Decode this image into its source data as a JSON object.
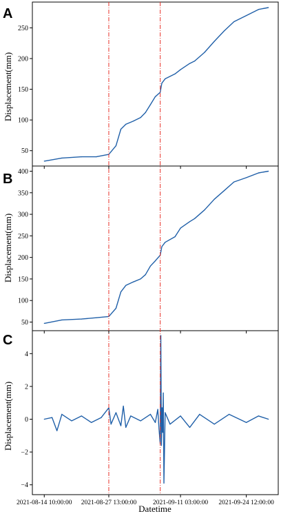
{
  "figure": {
    "xlabel": "Datetime",
    "x_tick_labels": [
      "2021-08-14 10:00:00",
      "2021-08-27 13:00:00",
      "2021-09-11 03:00:00",
      "2021-09-24 12:00:00"
    ],
    "vlines": [
      "2021-08-27 13:00:00",
      "2021-09-07 00:00:00"
    ],
    "vline_color": "#e8322a",
    "line_color": "#1f5fa8"
  },
  "chart_data": [
    {
      "type": "line",
      "panel": "A",
      "ylabel": "Displacement(mm)",
      "yticks": [
        50,
        100,
        150,
        200,
        250
      ],
      "ylim": [
        25,
        292
      ],
      "series": [
        {
          "x": [
            "2021-08-14 10:00",
            "2021-08-18 00:00",
            "2021-08-22 00:00",
            "2021-08-25 00:00",
            "2021-08-27 13:00",
            "2021-08-29 00:00",
            "2021-08-30 00:00",
            "2021-08-31 00:00",
            "2021-09-01 12:00",
            "2021-09-03 00:00",
            "2021-09-04 00:00",
            "2021-09-05 00:00",
            "2021-09-06 00:00",
            "2021-09-07 00:00",
            "2021-09-07 08:00",
            "2021-09-08 00:00",
            "2021-09-10 00:00",
            "2021-09-11 03:00",
            "2021-09-13 00:00",
            "2021-09-14 00:00",
            "2021-09-16 00:00",
            "2021-09-18 00:00",
            "2021-09-20 00:00",
            "2021-09-22 00:00",
            "2021-09-24 12:00",
            "2021-09-27 00:00",
            "2021-09-29 00:00"
          ],
          "y": [
            33,
            38,
            40,
            40,
            44,
            58,
            85,
            93,
            98,
            104,
            112,
            125,
            138,
            145,
            160,
            167,
            175,
            182,
            192,
            196,
            210,
            228,
            245,
            260,
            270,
            280,
            283
          ]
        }
      ]
    },
    {
      "type": "line",
      "panel": "B",
      "ylabel": "Displacement(mm)",
      "yticks": [
        50,
        100,
        150,
        200,
        250,
        300,
        350,
        400
      ],
      "ylim": [
        30,
        412
      ],
      "series": [
        {
          "x": [
            "2021-08-14 10:00",
            "2021-08-18 00:00",
            "2021-08-22 00:00",
            "2021-08-25 00:00",
            "2021-08-27 13:00",
            "2021-08-29 00:00",
            "2021-08-30 00:00",
            "2021-08-31 00:00",
            "2021-09-01 12:00",
            "2021-09-03 00:00",
            "2021-09-04 00:00",
            "2021-09-05 00:00",
            "2021-09-06 00:00",
            "2021-09-07 00:00",
            "2021-09-07 08:00",
            "2021-09-08 00:00",
            "2021-09-10 00:00",
            "2021-09-11 03:00",
            "2021-09-13 00:00",
            "2021-09-14 00:00",
            "2021-09-16 00:00",
            "2021-09-18 00:00",
            "2021-09-20 00:00",
            "2021-09-22 00:00",
            "2021-09-24 12:00",
            "2021-09-27 00:00",
            "2021-09-29 00:00"
          ],
          "y": [
            47,
            55,
            57,
            60,
            63,
            82,
            120,
            135,
            143,
            150,
            160,
            180,
            192,
            205,
            225,
            235,
            248,
            268,
            283,
            290,
            310,
            335,
            355,
            375,
            385,
            396,
            400
          ]
        }
      ]
    },
    {
      "type": "line",
      "panel": "C",
      "ylabel": "Displacement(mm)",
      "yticks": [
        -4,
        -2,
        0,
        2,
        4
      ],
      "ylim": [
        -4.6,
        5.4
      ],
      "series": [
        {
          "x": [
            "2021-08-14 10:00",
            "2021-08-16 00:00",
            "2021-08-17 00:00",
            "2021-08-18 00:00",
            "2021-08-20 00:00",
            "2021-08-22 00:00",
            "2021-08-24 00:00",
            "2021-08-26 00:00",
            "2021-08-27 13:00",
            "2021-08-28 00:00",
            "2021-08-29 00:00",
            "2021-08-30 00:00",
            "2021-08-30 12:00",
            "2021-08-31 00:00",
            "2021-09-01 00:00",
            "2021-09-03 00:00",
            "2021-09-05 00:00",
            "2021-09-06 00:00",
            "2021-09-06 12:00",
            "2021-09-06 18:00",
            "2021-09-07 00:00",
            "2021-09-07 03:00",
            "2021-09-07 06:00",
            "2021-09-07 09:00",
            "2021-09-07 12:00",
            "2021-09-07 15:00",
            "2021-09-07 18:00",
            "2021-09-08 00:00",
            "2021-09-09 00:00",
            "2021-09-11 03:00",
            "2021-09-13 00:00",
            "2021-09-15 00:00",
            "2021-09-18 00:00",
            "2021-09-21 00:00",
            "2021-09-24 12:00",
            "2021-09-27 00:00",
            "2021-09-29 00:00"
          ],
          "y": [
            0.0,
            0.1,
            -0.7,
            0.3,
            -0.1,
            0.2,
            -0.2,
            0.1,
            0.7,
            -0.3,
            0.4,
            -0.4,
            0.8,
            -0.5,
            0.2,
            -0.1,
            0.3,
            -0.2,
            0.6,
            -0.6,
            -1.5,
            5.1,
            -1.6,
            0.7,
            -0.8,
            1.6,
            -3.9,
            0.4,
            -0.3,
            0.2,
            -0.5,
            0.3,
            -0.3,
            0.3,
            -0.2,
            0.2,
            0.0
          ]
        }
      ]
    }
  ]
}
